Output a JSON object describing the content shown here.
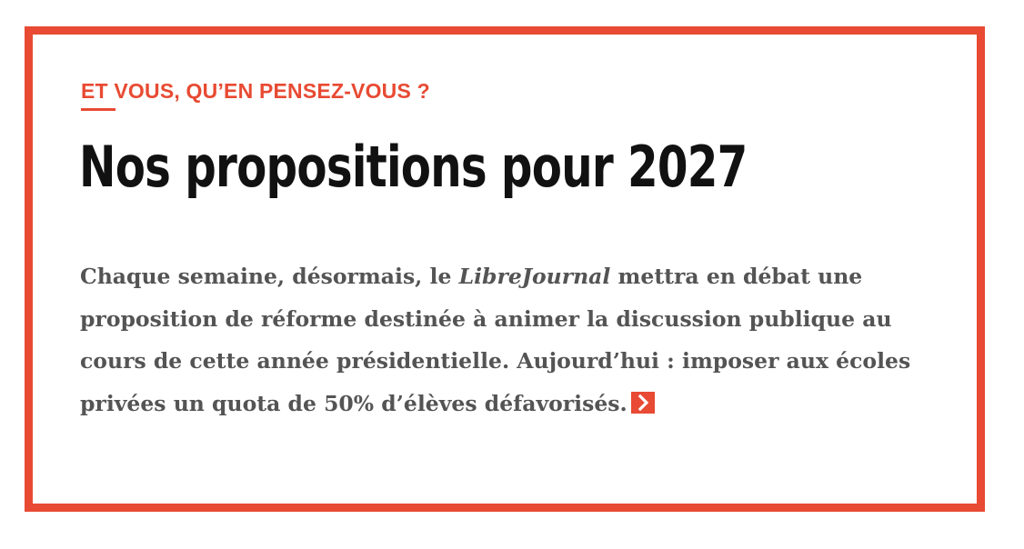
{
  "card": {
    "kicker": "ET VOUS, QU’EN PENSEZ-VOUS ?",
    "title": "Nos propositions pour 2027",
    "lede": {
      "before_publication": "Chaque semaine, désormais, le ",
      "publication": "LibreJournal",
      "after_publication": " mettra en débat une proposition de réforme destinée à animer la discussion publique au cours de cette année présidentielle. Aujourd’hui : imposer aux écoles privées un quota de 50% d’élèves défavorisés."
    },
    "more_icon": "chevron-right-icon"
  },
  "colors": {
    "accent": "#e84a33",
    "title": "#111111",
    "body": "#545454",
    "background": "#ffffff"
  }
}
